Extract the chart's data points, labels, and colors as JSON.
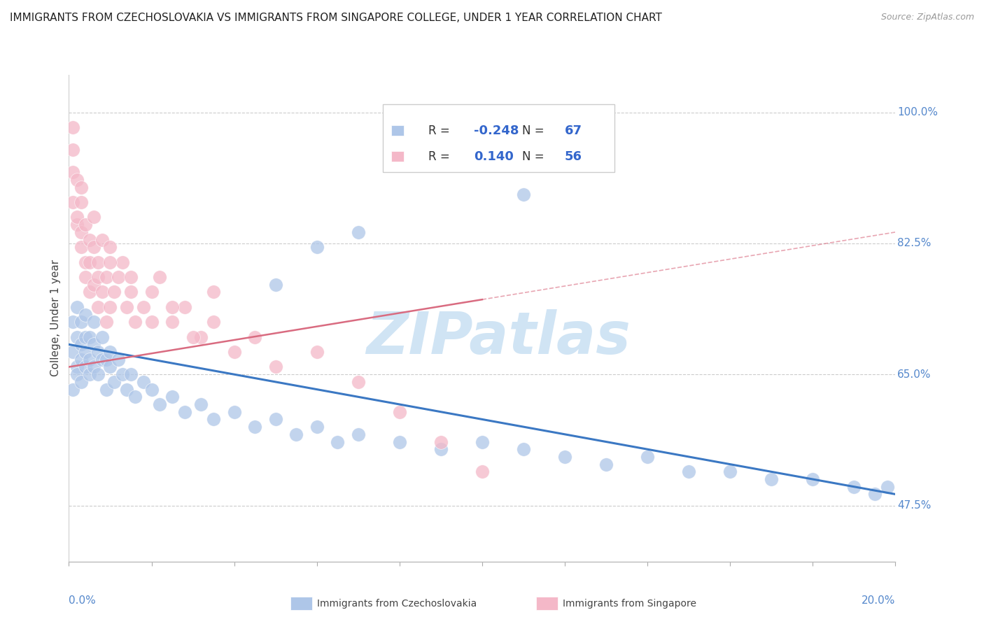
{
  "title": "IMMIGRANTS FROM CZECHOSLOVAKIA VS IMMIGRANTS FROM SINGAPORE COLLEGE, UNDER 1 YEAR CORRELATION CHART",
  "source": "Source: ZipAtlas.com",
  "ylabel": "College, Under 1 year",
  "y_ticks": [
    "100.0%",
    "82.5%",
    "65.0%",
    "47.5%"
  ],
  "y_tick_vals": [
    1.0,
    0.825,
    0.65,
    0.475
  ],
  "xlim": [
    0.0,
    0.2
  ],
  "ylim": [
    0.4,
    1.05
  ],
  "r_czech": -0.248,
  "n_czech": 67,
  "r_sing": 0.14,
  "n_sing": 56,
  "color_czech": "#aec6e8",
  "color_sing": "#f4b8c8",
  "trend_czech_color": "#3b78c3",
  "trend_sing_color": "#d96b80",
  "watermark": "ZIPatlas",
  "watermark_color": "#d0e4f4",
  "czech_x": [
    0.001,
    0.001,
    0.001,
    0.002,
    0.002,
    0.002,
    0.002,
    0.003,
    0.003,
    0.003,
    0.003,
    0.004,
    0.004,
    0.004,
    0.004,
    0.005,
    0.005,
    0.005,
    0.006,
    0.006,
    0.006,
    0.007,
    0.007,
    0.008,
    0.008,
    0.009,
    0.009,
    0.01,
    0.01,
    0.011,
    0.012,
    0.013,
    0.014,
    0.015,
    0.016,
    0.018,
    0.02,
    0.022,
    0.025,
    0.028,
    0.032,
    0.035,
    0.04,
    0.045,
    0.05,
    0.055,
    0.06,
    0.065,
    0.07,
    0.08,
    0.09,
    0.1,
    0.11,
    0.12,
    0.13,
    0.14,
    0.15,
    0.16,
    0.17,
    0.18,
    0.19,
    0.195,
    0.198,
    0.07,
    0.11,
    0.06,
    0.05
  ],
  "czech_y": [
    0.68,
    0.72,
    0.63,
    0.7,
    0.66,
    0.74,
    0.65,
    0.69,
    0.72,
    0.64,
    0.67,
    0.7,
    0.66,
    0.73,
    0.68,
    0.65,
    0.7,
    0.67,
    0.66,
    0.69,
    0.72,
    0.65,
    0.68,
    0.67,
    0.7,
    0.63,
    0.67,
    0.66,
    0.68,
    0.64,
    0.67,
    0.65,
    0.63,
    0.65,
    0.62,
    0.64,
    0.63,
    0.61,
    0.62,
    0.6,
    0.61,
    0.59,
    0.6,
    0.58,
    0.59,
    0.57,
    0.58,
    0.56,
    0.57,
    0.56,
    0.55,
    0.56,
    0.55,
    0.54,
    0.53,
    0.54,
    0.52,
    0.52,
    0.51,
    0.51,
    0.5,
    0.49,
    0.5,
    0.84,
    0.89,
    0.82,
    0.77
  ],
  "sing_x": [
    0.001,
    0.001,
    0.001,
    0.001,
    0.002,
    0.002,
    0.002,
    0.003,
    0.003,
    0.003,
    0.003,
    0.004,
    0.004,
    0.004,
    0.005,
    0.005,
    0.005,
    0.006,
    0.006,
    0.006,
    0.007,
    0.007,
    0.007,
    0.008,
    0.008,
    0.009,
    0.009,
    0.01,
    0.01,
    0.011,
    0.012,
    0.013,
    0.014,
    0.015,
    0.016,
    0.018,
    0.02,
    0.022,
    0.025,
    0.028,
    0.032,
    0.035,
    0.04,
    0.045,
    0.05,
    0.06,
    0.07,
    0.08,
    0.09,
    0.1,
    0.02,
    0.025,
    0.03,
    0.035,
    0.015,
    0.01
  ],
  "sing_y": [
    0.95,
    0.88,
    0.92,
    0.98,
    0.85,
    0.91,
    0.86,
    0.82,
    0.88,
    0.84,
    0.9,
    0.8,
    0.85,
    0.78,
    0.83,
    0.76,
    0.8,
    0.82,
    0.77,
    0.86,
    0.74,
    0.8,
    0.78,
    0.76,
    0.83,
    0.72,
    0.78,
    0.74,
    0.82,
    0.76,
    0.78,
    0.8,
    0.74,
    0.76,
    0.72,
    0.74,
    0.76,
    0.78,
    0.72,
    0.74,
    0.7,
    0.72,
    0.68,
    0.7,
    0.66,
    0.68,
    0.64,
    0.6,
    0.56,
    0.52,
    0.72,
    0.74,
    0.7,
    0.76,
    0.78,
    0.8
  ]
}
